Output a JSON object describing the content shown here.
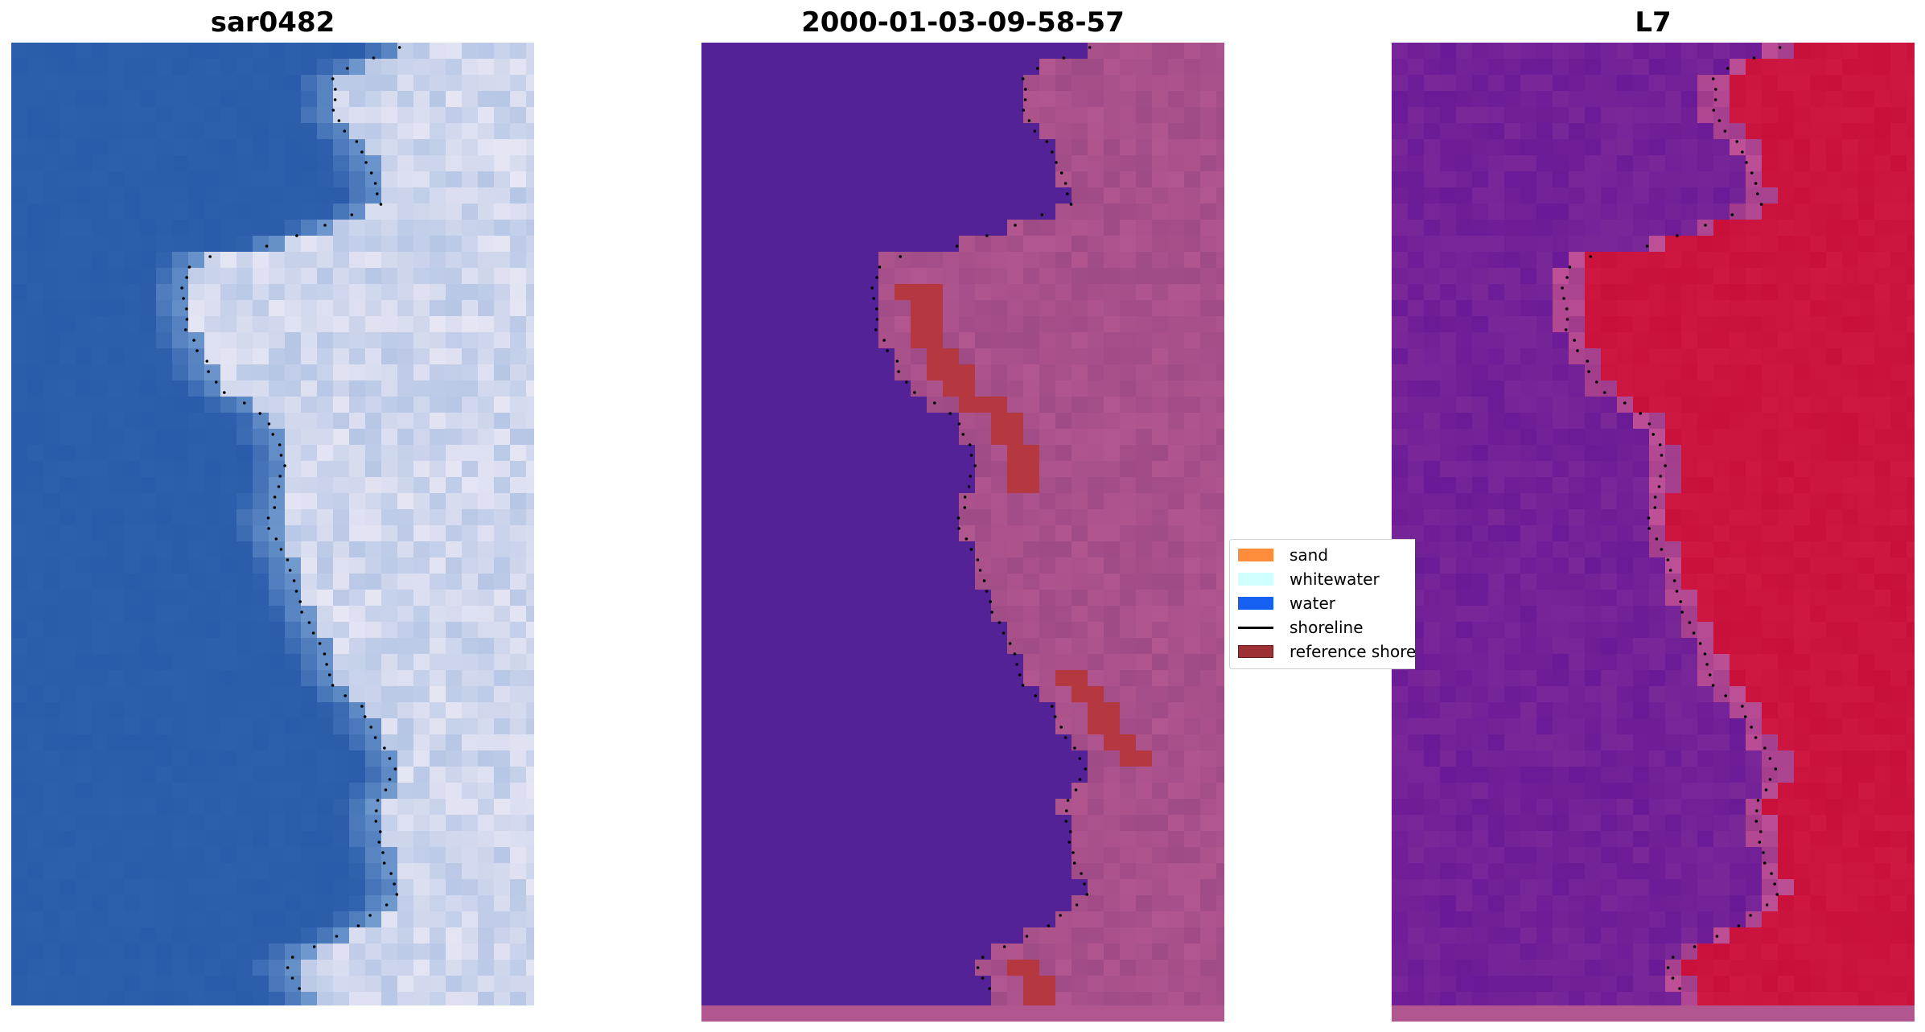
{
  "panels": [
    {
      "title": "sar0482"
    },
    {
      "title": "2000-01-03-09-58-57"
    },
    {
      "title": "L7"
    }
  ],
  "legend": {
    "items": [
      {
        "label": "sand",
        "color": "#ff8c3a",
        "kind": "patch"
      },
      {
        "label": "whitewater",
        "color": "#cfffff",
        "kind": "patch"
      },
      {
        "label": "water",
        "color": "#1560f0",
        "kind": "patch"
      },
      {
        "label": "shoreline",
        "color": "#000000",
        "kind": "line"
      },
      {
        "label": "reference shoreline",
        "color": "#9c3035",
        "kind": "patch"
      }
    ]
  },
  "colors": {
    "ocean_blue": "#2d5fac",
    "surf_white": "#e6e6f4",
    "classified_water": "#522296",
    "classified_land": "#b2568f",
    "reference_band": "#b5373f",
    "l7_purple": "#7a2898",
    "l7_red": "#c8103a"
  }
}
